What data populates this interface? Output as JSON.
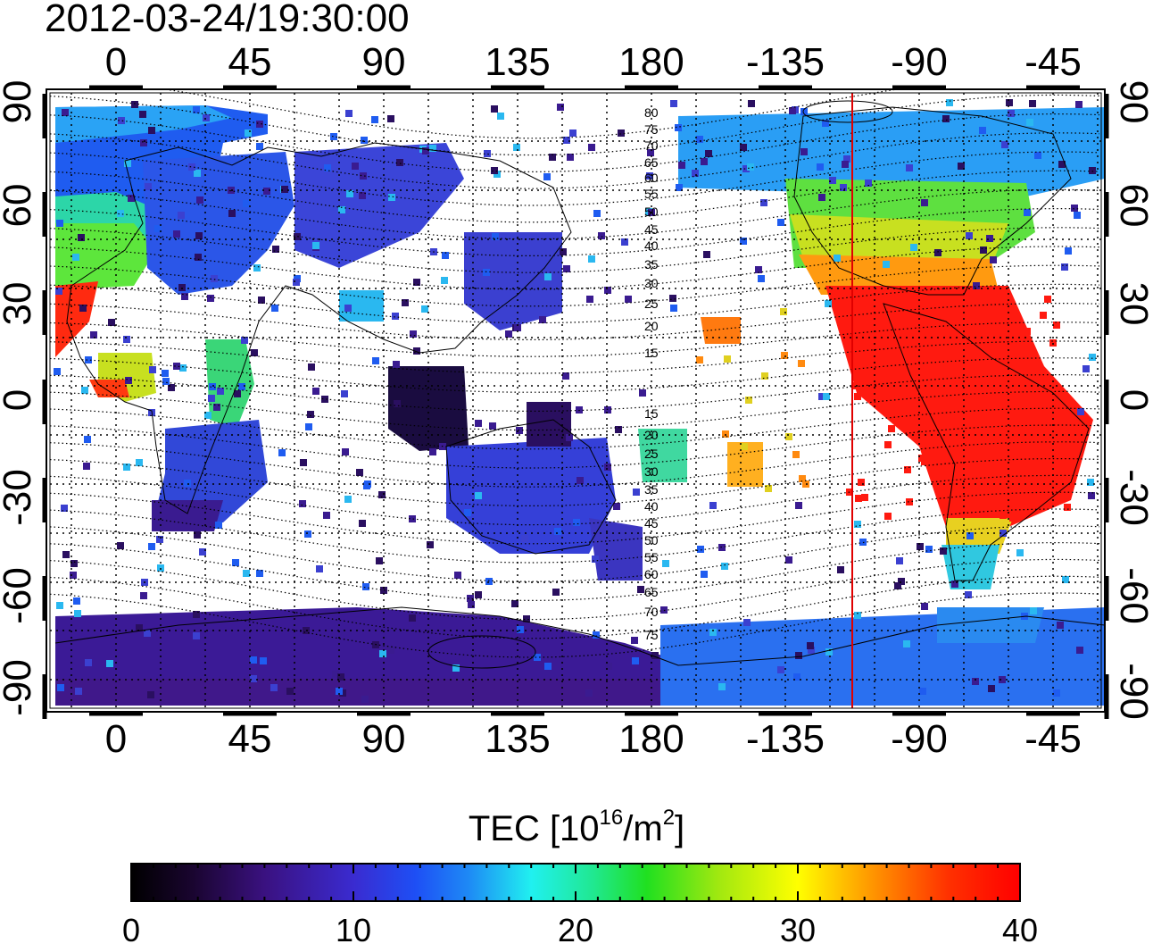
{
  "title": "2012-03-24/19:30:00",
  "map": {
    "top_lon_labels": [
      "0",
      "45",
      "90",
      "135",
      "180",
      "-135",
      "-90",
      "-45"
    ],
    "bottom_lon_labels": [
      "0",
      "45",
      "90",
      "135",
      "180",
      "-135",
      "-90",
      "-45"
    ],
    "left_lat_labels": [
      "90",
      "60",
      "30",
      "0",
      "-30",
      "-60",
      "-90"
    ],
    "right_lat_labels": [
      "90",
      "60",
      "30",
      "0",
      "-30",
      "-60",
      "-90"
    ],
    "contour_labels_north": [
      "80",
      "75",
      "70",
      "65",
      "60",
      "55",
      "50",
      "45",
      "40",
      "35",
      "30",
      "25",
      "20",
      "15"
    ],
    "contour_labels_south": [
      "15",
      "20",
      "25",
      "30",
      "35",
      "40",
      "45",
      "50",
      "55",
      "60",
      "65",
      "70",
      "75"
    ],
    "terminator_color": "#e00000",
    "grid": "dotted"
  },
  "colorbar": {
    "title_prefix": "TEC  [10",
    "title_sup1": "16",
    "title_mid": "/m",
    "title_sup2": "2",
    "title_suffix": "]",
    "tick_labels": [
      "0",
      "10",
      "20",
      "30",
      "40"
    ],
    "min": 0,
    "max": 40
  }
}
